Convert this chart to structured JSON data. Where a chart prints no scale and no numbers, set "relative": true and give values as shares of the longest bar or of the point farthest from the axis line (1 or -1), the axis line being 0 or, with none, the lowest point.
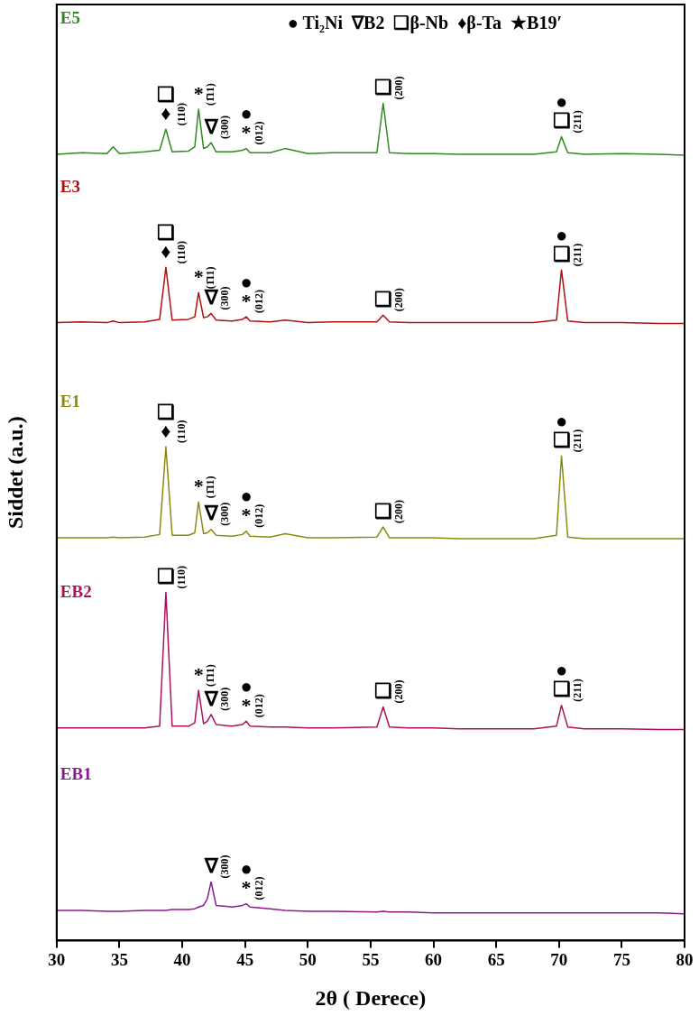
{
  "chart_data": {
    "type": "line",
    "relative": true,
    "xlabel": "2θ ( Derece)",
    "ylabel": "Siddet (a.u.)",
    "xlim": [
      30,
      80
    ],
    "xticks": [
      30,
      35,
      40,
      45,
      50,
      55,
      60,
      65,
      70,
      75,
      80
    ],
    "grid": false,
    "legend": false,
    "marker": "none",
    "line_style": "solid",
    "x": [
      30,
      32,
      34,
      34.5,
      35,
      37,
      38.2,
      38.7,
      39.2,
      40.5,
      41.0,
      41.3,
      41.7,
      42.0,
      42.3,
      42.7,
      44,
      44.8,
      45.1,
      45.4,
      47,
      48.2,
      50,
      52,
      55.5,
      56,
      56.5,
      58,
      60,
      62,
      65,
      68,
      69.8,
      70.2,
      70.7,
      72,
      75,
      78,
      80
    ],
    "series": [
      {
        "name": "E5",
        "color": "#2e8b1e",
        "values": [
          0.939,
          0.941,
          0.94,
          0.948,
          0.94,
          0.942,
          0.944,
          0.969,
          0.942,
          0.943,
          0.948,
          0.993,
          0.946,
          0.948,
          0.953,
          0.942,
          0.942,
          0.944,
          0.946,
          0.941,
          0.941,
          0.946,
          0.94,
          0.941,
          0.941,
          1.0,
          0.941,
          0.94,
          0.94,
          0.939,
          0.939,
          0.939,
          0.942,
          0.96,
          0.941,
          0.939,
          0.94,
          0.939,
          0.938
        ]
      },
      {
        "name": "E3",
        "color": "#b01010",
        "values": [
          0.738,
          0.739,
          0.738,
          0.74,
          0.738,
          0.739,
          0.742,
          0.804,
          0.741,
          0.742,
          0.745,
          0.774,
          0.744,
          0.745,
          0.749,
          0.741,
          0.74,
          0.742,
          0.745,
          0.74,
          0.739,
          0.741,
          0.738,
          0.739,
          0.739,
          0.747,
          0.739,
          0.738,
          0.738,
          0.738,
          0.738,
          0.738,
          0.741,
          0.801,
          0.74,
          0.738,
          0.738,
          0.737,
          0.737
        ]
      },
      {
        "name": "E1",
        "color": "#8b8b10",
        "values": [
          0.481,
          0.481,
          0.481,
          0.482,
          0.481,
          0.482,
          0.485,
          0.59,
          0.484,
          0.484,
          0.487,
          0.524,
          0.486,
          0.487,
          0.491,
          0.484,
          0.483,
          0.485,
          0.489,
          0.483,
          0.482,
          0.486,
          0.481,
          0.481,
          0.482,
          0.494,
          0.481,
          0.481,
          0.481,
          0.48,
          0.48,
          0.48,
          0.484,
          0.579,
          0.482,
          0.48,
          0.48,
          0.48,
          0.48
        ]
      },
      {
        "name": "EB2",
        "color": "#b0105a",
        "values": [
          0.254,
          0.254,
          0.254,
          0.254,
          0.254,
          0.254,
          0.256,
          0.416,
          0.256,
          0.256,
          0.26,
          0.299,
          0.259,
          0.262,
          0.27,
          0.258,
          0.256,
          0.258,
          0.262,
          0.256,
          0.255,
          0.255,
          0.254,
          0.254,
          0.255,
          0.279,
          0.255,
          0.254,
          0.254,
          0.253,
          0.253,
          0.253,
          0.256,
          0.281,
          0.255,
          0.253,
          0.253,
          0.252,
          0.252
        ]
      },
      {
        "name": "EB1",
        "color": "#8b1a8b",
        "values": [
          0.036,
          0.036,
          0.035,
          0.035,
          0.035,
          0.036,
          0.036,
          0.036,
          0.037,
          0.037,
          0.038,
          0.04,
          0.042,
          0.05,
          0.07,
          0.042,
          0.04,
          0.042,
          0.044,
          0.04,
          0.038,
          0.036,
          0.035,
          0.035,
          0.034,
          0.035,
          0.034,
          0.034,
          0.033,
          0.033,
          0.033,
          0.033,
          0.033,
          0.033,
          0.033,
          0.033,
          0.033,
          0.033,
          0.032
        ]
      }
    ],
    "annotations": [
      "● Ti₂Ni  ∇B2  ❑β-Nb  ♦β-Ta  ★B19′",
      {
        "text": "♦",
        "x": 38.7,
        "y": 0.969
      },
      {
        "text": "❑",
        "x": 38.7,
        "y": 0.969
      },
      {
        "text": "(110)",
        "x": 38.7,
        "y": 0.969
      },
      {
        "text": "*",
        "x": 41.3,
        "y": 0.993
      },
      {
        "text": "(1̄11)",
        "x": 41.3,
        "y": 0.993
      },
      {
        "text": "∇",
        "x": 42.3,
        "y": 0.953
      },
      {
        "text": "(300)",
        "x": 42.3,
        "y": 0.953
      },
      {
        "text": "*",
        "x": 45.1,
        "y": 0.946
      },
      {
        "text": "●",
        "x": 45.1,
        "y": 0.946
      },
      {
        "text": "(012)",
        "x": 45.1,
        "y": 0.946
      },
      {
        "text": "❑",
        "x": 56,
        "y": 1.0
      },
      {
        "text": "(200)",
        "x": 56,
        "y": 1.0
      },
      {
        "text": "❑",
        "x": 70.2,
        "y": 0.96
      },
      {
        "text": "●",
        "x": 70.2,
        "y": 0.96
      },
      {
        "text": "(211)",
        "x": 70.2,
        "y": 0.96
      },
      {
        "text": "♦",
        "x": 38.7,
        "y": 0.804
      },
      {
        "text": "❑",
        "x": 38.7,
        "y": 0.804
      },
      {
        "text": "(110)",
        "x": 38.7,
        "y": 0.804
      },
      {
        "text": "*",
        "x": 41.3,
        "y": 0.774
      },
      {
        "text": "(1̄11)",
        "x": 41.3,
        "y": 0.774
      },
      {
        "text": "∇",
        "x": 42.3,
        "y": 0.749
      },
      {
        "text": "(300)",
        "x": 42.3,
        "y": 0.749
      },
      {
        "text": "*",
        "x": 45.1,
        "y": 0.745
      },
      {
        "text": "●",
        "x": 45.1,
        "y": 0.745
      },
      {
        "text": "(012)",
        "x": 45.1,
        "y": 0.745
      },
      {
        "text": "❑",
        "x": 56,
        "y": 0.747
      },
      {
        "text": "(200)",
        "x": 56,
        "y": 0.747
      },
      {
        "text": "❑",
        "x": 70.2,
        "y": 0.801
      },
      {
        "text": "●",
        "x": 70.2,
        "y": 0.801
      },
      {
        "text": "(211)",
        "x": 70.2,
        "y": 0.801
      },
      {
        "text": "♦",
        "x": 38.7,
        "y": 0.59
      },
      {
        "text": "❑",
        "x": 38.7,
        "y": 0.59
      },
      {
        "text": "(110)",
        "x": 38.7,
        "y": 0.59
      },
      {
        "text": "*",
        "x": 41.3,
        "y": 0.524
      },
      {
        "text": "(1̄11)",
        "x": 41.3,
        "y": 0.524
      },
      {
        "text": "∇",
        "x": 42.3,
        "y": 0.491
      },
      {
        "text": "(300)",
        "x": 42.3,
        "y": 0.491
      },
      {
        "text": "*",
        "x": 45.1,
        "y": 0.489
      },
      {
        "text": "●",
        "x": 45.1,
        "y": 0.489
      },
      {
        "text": "(012)",
        "x": 45.1,
        "y": 0.489
      },
      {
        "text": "❑",
        "x": 56,
        "y": 0.494
      },
      {
        "text": "(200)",
        "x": 56,
        "y": 0.494
      },
      {
        "text": "❑",
        "x": 70.2,
        "y": 0.579
      },
      {
        "text": "●",
        "x": 70.2,
        "y": 0.579
      },
      {
        "text": "(211)",
        "x": 70.2,
        "y": 0.579
      },
      {
        "text": "❑",
        "x": 38.7,
        "y": 0.416
      },
      {
        "text": "(110)",
        "x": 38.7,
        "y": 0.416
      },
      {
        "text": "*",
        "x": 41.3,
        "y": 0.299
      },
      {
        "text": "(1̄11)",
        "x": 41.3,
        "y": 0.299
      },
      {
        "text": "∇",
        "x": 42.3,
        "y": 0.27
      },
      {
        "text": "(300)",
        "x": 42.3,
        "y": 0.27
      },
      {
        "text": "*",
        "x": 45.1,
        "y": 0.262
      },
      {
        "text": "●",
        "x": 45.1,
        "y": 0.262
      },
      {
        "text": "(012)",
        "x": 45.1,
        "y": 0.262
      },
      {
        "text": "❑",
        "x": 56,
        "y": 0.279
      },
      {
        "text": "(200)",
        "x": 56,
        "y": 0.279
      },
      {
        "text": "❑",
        "x": 70.2,
        "y": 0.281
      },
      {
        "text": "●",
        "x": 70.2,
        "y": 0.281
      },
      {
        "text": "(211)",
        "x": 70.2,
        "y": 0.281
      },
      {
        "text": "∇",
        "x": 42.3,
        "y": 0.07
      },
      {
        "text": "(300)",
        "x": 42.3,
        "y": 0.07
      },
      {
        "text": "*",
        "x": 45.1,
        "y": 0.044
      },
      {
        "text": "●",
        "x": 45.1,
        "y": 0.044
      },
      {
        "text": "(012)",
        "x": 45.1,
        "y": 0.044
      }
    ]
  }
}
